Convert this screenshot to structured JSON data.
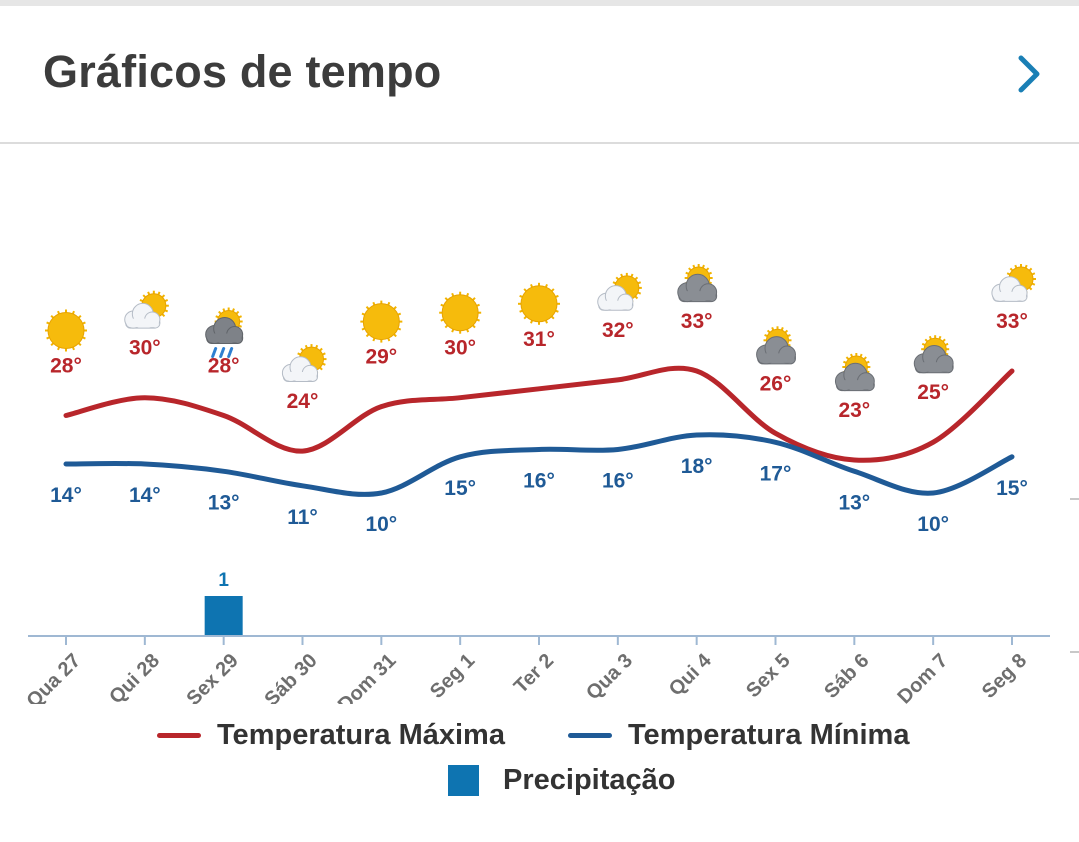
{
  "header": {
    "title": "Gráficos de tempo",
    "chevron_icon": "chevron-right-icon"
  },
  "colors": {
    "max": "#b8262b",
    "min": "#1f5a96",
    "precip": "#0e74b1",
    "axis": "#9fb8d3",
    "chevron": "#1a7fb5"
  },
  "chart_data": {
    "type": "line",
    "categories": [
      "Qua 27",
      "Qui 28",
      "Sex 29",
      "Sáb 30",
      "Dom 31",
      "Seg 1",
      "Ter 2",
      "Qua 3",
      "Qui 4",
      "Sex 5",
      "Sáb 6",
      "Dom 7",
      "Seg 8"
    ],
    "icons": [
      "sun-icon",
      "partly-cloudy-icon",
      "rain-storm-icon",
      "partly-cloudy-icon",
      "sun-icon",
      "sun-icon",
      "sun-icon",
      "partly-cloudy-icon",
      "cloudy-sun-icon",
      "cloudy-sun-icon",
      "cloudy-sun-icon",
      "cloudy-sun-icon",
      "partly-cloudy-icon"
    ],
    "series": [
      {
        "name": "Temperatura Máxima",
        "values": [
          28,
          30,
          28,
          24,
          29,
          30,
          31,
          32,
          33,
          26,
          23,
          25,
          33
        ],
        "labels": [
          "28°",
          "30°",
          "28°",
          "24°",
          "29°",
          "30°",
          "31°",
          "32°",
          "33°",
          "26°",
          "23°",
          "25°",
          "33°"
        ]
      },
      {
        "name": "Temperatura Mínima",
        "values": [
          14,
          14,
          13,
          11,
          10,
          15,
          16,
          16,
          18,
          17,
          13,
          10,
          15
        ],
        "labels": [
          "14°",
          "14°",
          "13°",
          "11°",
          "10°",
          "15°",
          "16°",
          "16°",
          "18°",
          "17°",
          "13°",
          "10°",
          "15°"
        ]
      },
      {
        "name": "Precipitação",
        "type": "bar",
        "values": [
          0,
          0,
          1,
          0,
          0,
          0,
          0,
          0,
          0,
          0,
          0,
          0,
          0
        ],
        "labels": [
          "",
          "",
          "1",
          "",
          "",
          "",
          "",
          "",
          "",
          "",
          "",
          "",
          ""
        ]
      }
    ],
    "legend": "bottom"
  },
  "legend": {
    "max_label": "Temperatura Máxima",
    "min_label": "Temperatura Mínima",
    "precip_label": "Precipitação"
  }
}
